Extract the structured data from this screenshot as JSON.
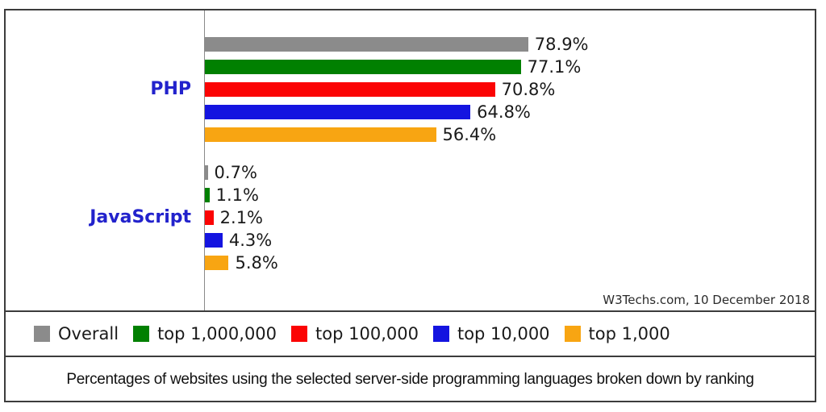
{
  "chart_data": {
    "type": "bar",
    "orientation": "horizontal",
    "title": "",
    "categories": [
      "PHP",
      "JavaScript"
    ],
    "series": [
      {
        "name": "Overall",
        "color": "#8b8b8b",
        "values": [
          78.9,
          0.7
        ]
      },
      {
        "name": "top 1,000,000",
        "color": "#018001",
        "values": [
          77.1,
          1.1
        ]
      },
      {
        "name": "top 100,000",
        "color": "#fb0404",
        "values": [
          70.8,
          2.1
        ]
      },
      {
        "name": "top 10,000",
        "color": "#1414e0",
        "values": [
          64.8,
          4.3
        ]
      },
      {
        "name": "top 1,000",
        "color": "#f8a512",
        "values": [
          56.4,
          5.8
        ]
      }
    ],
    "value_suffix": "%",
    "xlim": [
      0,
      100
    ],
    "grid": false,
    "legend_position": "bottom"
  },
  "attribution": "W3Techs.com, 10 December 2018",
  "caption": "Percentages of websites using the selected server-side programming languages broken down by ranking",
  "colors": {
    "category_label": "#2222cc",
    "value_label": "#1a1a1a",
    "axis_line": "#8a8a8a",
    "border": "#3c3c3c"
  }
}
